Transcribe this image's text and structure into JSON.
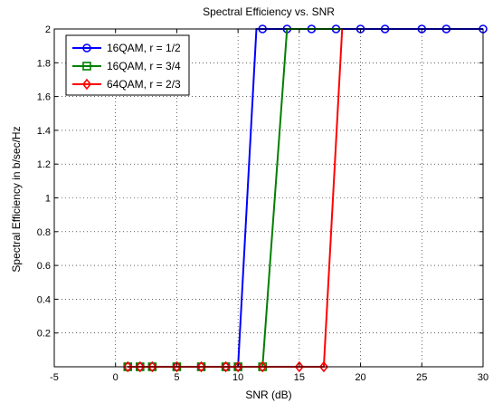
{
  "chart_data": {
    "type": "line",
    "title": "Spectral Efficiency vs. SNR",
    "xlabel": "SNR (dB)",
    "ylabel": "Spectral Efficiency in b/sec/Hz",
    "xlim": [
      -5,
      30
    ],
    "ylim": [
      0,
      2
    ],
    "xticks": [
      -5,
      0,
      5,
      10,
      15,
      20,
      25,
      30
    ],
    "yticks": [
      0.2,
      0.4,
      0.6,
      0.8,
      1,
      1.2,
      1.4,
      1.6,
      1.8,
      2
    ],
    "xtick_labels": [
      "-5",
      "0",
      "5",
      "10",
      "15",
      "20",
      "25",
      "30"
    ],
    "ytick_labels": [
      "0.2",
      "0.4",
      "0.6",
      "0.8",
      "1",
      "1.2",
      "1.4",
      "1.6",
      "1.8",
      "2"
    ],
    "grid": true,
    "grid_style": "dotted",
    "legend_position": "top-left",
    "series": [
      {
        "name": "16QAM, r = 1/2",
        "color": "#0000ff",
        "marker": "circle",
        "x": [
          1,
          2,
          3,
          5,
          7,
          9,
          10,
          12,
          14,
          16,
          18,
          20,
          22,
          25,
          27,
          30
        ],
        "y": [
          0,
          0,
          0,
          0,
          0,
          0,
          0,
          2,
          2,
          2,
          2,
          2,
          2,
          2,
          2,
          2
        ],
        "marker_x": [
          1,
          2,
          3,
          5,
          7,
          9,
          10,
          12,
          14,
          16,
          18,
          20,
          22,
          25,
          27,
          30
        ],
        "marker_y": [
          0,
          0,
          0,
          0,
          0,
          0,
          0,
          2,
          2,
          2,
          2,
          2,
          2,
          2,
          2,
          2
        ],
        "line_x": [
          1,
          2,
          3,
          5,
          7,
          9,
          10,
          11.5,
          12,
          14,
          16,
          18,
          20,
          22,
          25,
          27,
          30
        ],
        "line_y": [
          0,
          0,
          0,
          0,
          0,
          0,
          0,
          2,
          2,
          2,
          2,
          2,
          2,
          2,
          2,
          2,
          2
        ]
      },
      {
        "name": "16QAM, r = 3/4",
        "color": "#008000",
        "marker": "square",
        "marker_x": [
          1,
          2,
          3,
          5,
          7,
          9,
          10,
          12
        ],
        "marker_y": [
          0,
          0,
          0,
          0,
          0,
          0,
          0,
          0
        ],
        "line_x": [
          1,
          2,
          3,
          5,
          7,
          9,
          10,
          12,
          14,
          18.5
        ],
        "line_y": [
          0,
          0,
          0,
          0,
          0,
          0,
          0,
          0,
          2,
          2
        ]
      },
      {
        "name": "64QAM, r = 2/3",
        "color": "#ff0000",
        "marker": "diamond",
        "marker_x": [
          1,
          2,
          3,
          5,
          7,
          9,
          10,
          12,
          15,
          17
        ],
        "marker_y": [
          0,
          0,
          0,
          0,
          0,
          0,
          0,
          0,
          0,
          0
        ],
        "line_x": [
          1,
          2,
          3,
          5,
          7,
          9,
          10,
          12,
          15,
          17,
          18.5
        ],
        "line_y": [
          0,
          0,
          0,
          0,
          0,
          0,
          0,
          0,
          0,
          0,
          2
        ]
      }
    ]
  }
}
